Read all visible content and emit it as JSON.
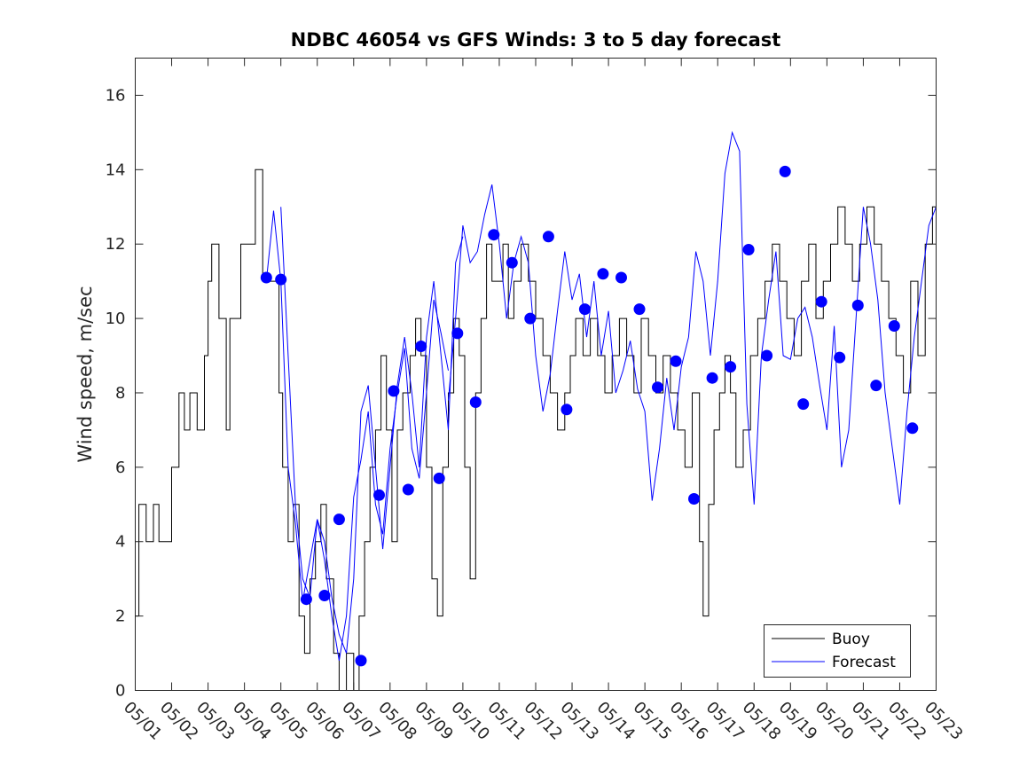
{
  "chart_data": {
    "type": "line",
    "title": "NDBC 46054 vs GFS Winds: 3 to 5 day forecast",
    "xlabel": "",
    "ylabel": "Wind speed, m/sec",
    "xlim": [
      0,
      22
    ],
    "ylim": [
      0,
      17
    ],
    "yticks": [
      0,
      2,
      4,
      6,
      8,
      10,
      12,
      14,
      16
    ],
    "xtick_labels": [
      "05/01",
      "05/02",
      "05/03",
      "05/04",
      "05/05",
      "05/06",
      "05/07",
      "05/08",
      "05/09",
      "05/10",
      "05/11",
      "05/12",
      "05/13",
      "05/14",
      "05/15",
      "05/16",
      "05/17",
      "05/18",
      "05/19",
      "05/20",
      "05/21",
      "05/22",
      "05/23"
    ],
    "legend": {
      "placement": "bottom-right",
      "entries": [
        "Buoy",
        "Forecast"
      ]
    },
    "colors": {
      "buoy": "#000000",
      "forecast": "#0000ff",
      "axes": "#262626"
    },
    "series": [
      {
        "name": "Buoy",
        "style": "step",
        "x": [
          0,
          0.1,
          0.3,
          0.5,
          0.65,
          0.8,
          1.0,
          1.2,
          1.35,
          1.5,
          1.7,
          1.9,
          2.0,
          2.1,
          2.3,
          2.5,
          2.6,
          2.9,
          3.1,
          3.3,
          3.5,
          3.8,
          3.95,
          4.05,
          4.2,
          4.35,
          4.5,
          4.65,
          4.8,
          4.95,
          5.1,
          5.25,
          5.45,
          5.6,
          5.8,
          6.0,
          6.15,
          6.3,
          6.45,
          6.6,
          6.75,
          6.9,
          7.05,
          7.2,
          7.35,
          7.55,
          7.7,
          7.85,
          8.0,
          8.15,
          8.3,
          8.45,
          8.6,
          8.75,
          8.9,
          9.05,
          9.2,
          9.35,
          9.5,
          9.65,
          9.8,
          9.95,
          10.1,
          10.25,
          10.4,
          10.6,
          10.8,
          11.0,
          11.2,
          11.4,
          11.6,
          11.8,
          11.95,
          12.1,
          12.3,
          12.5,
          12.7,
          12.9,
          13.1,
          13.3,
          13.5,
          13.7,
          13.9,
          14.1,
          14.3,
          14.5,
          14.7,
          14.9,
          15.1,
          15.3,
          15.5,
          15.6,
          15.75,
          15.9,
          16.05,
          16.2,
          16.35,
          16.5,
          16.7,
          16.9,
          17.1,
          17.3,
          17.5,
          17.7,
          17.9,
          18.1,
          18.3,
          18.5,
          18.7,
          18.9,
          19.1,
          19.3,
          19.5,
          19.7,
          19.9,
          20.1,
          20.3,
          20.5,
          20.7,
          20.9,
          21.1,
          21.3,
          21.5,
          21.7,
          21.9
        ],
        "values": [
          2,
          5,
          4,
          5,
          4,
          4,
          6,
          8,
          7,
          8,
          7,
          9,
          11,
          12,
          10,
          7,
          10,
          12,
          12,
          14,
          11,
          11,
          8,
          6,
          4,
          5,
          2,
          1,
          3,
          4,
          5,
          3,
          1,
          0,
          1,
          0,
          2,
          4,
          6,
          7,
          9,
          7,
          4,
          7,
          8,
          9,
          10,
          9,
          6,
          3,
          2,
          6,
          8,
          10,
          9,
          6,
          3,
          8,
          10,
          12,
          11,
          11,
          12,
          10,
          11,
          12,
          11,
          10,
          9,
          8,
          7,
          8,
          9,
          10,
          9,
          10,
          9,
          8,
          9,
          10,
          9,
          8,
          10,
          9,
          8,
          9,
          8,
          7,
          6,
          8,
          4,
          2,
          5,
          7,
          8,
          9,
          8,
          6,
          7,
          9,
          10,
          11,
          12,
          11,
          10,
          9,
          11,
          12,
          10,
          11,
          12,
          13,
          12,
          11,
          12,
          13,
          12,
          11,
          10,
          9,
          8,
          11,
          9,
          12,
          13
        ]
      },
      {
        "name": "Forecast",
        "style": "line",
        "runs": [
          {
            "x": [
              3.6,
              3.8,
              4.0,
              4.2,
              4.4,
              4.6,
              4.8,
              5.0,
              5.2,
              5.4,
              5.6,
              5.8,
              6.0,
              6.2,
              6.4,
              6.6,
              6.8,
              7.0,
              7.2,
              7.4,
              7.6,
              7.8,
              8.0,
              8.2,
              8.4,
              8.6
            ],
            "y": [
              11.0,
              12.9,
              11.0,
              6.0,
              4.5,
              2.4,
              3.5,
              4.6,
              3.5,
              2.0,
              0.8,
              2.0,
              5.2,
              6.2,
              7.5,
              5.0,
              4.2,
              6.5,
              8.0,
              9.2,
              6.5,
              5.7,
              8.0,
              10.5,
              9.6,
              8.6
            ]
          },
          {
            "x": [
              4.0,
              4.2,
              4.4,
              4.6,
              4.8,
              5.0,
              5.2,
              5.4,
              5.6,
              5.8,
              6.0,
              6.2,
              6.4,
              6.6,
              6.8,
              7.0,
              7.2,
              7.4,
              7.6,
              7.8,
              8.0,
              8.2,
              8.4,
              8.6,
              8.8,
              9.0
            ],
            "y": [
              13.0,
              9.0,
              5.0,
              3.0,
              2.5,
              4.6,
              4.0,
              2.5,
              1.5,
              1.0,
              3.0,
              7.5,
              8.2,
              6.0,
              3.8,
              6.0,
              8.2,
              9.5,
              8.0,
              6.0,
              9.5,
              11.0,
              9.0,
              7.0,
              11.5,
              12.2
            ]
          },
          {
            "x": [
              8.6,
              8.8,
              9.0,
              9.2,
              9.4,
              9.6,
              9.8,
              10.0,
              10.2,
              10.4,
              10.6,
              10.8,
              11.0,
              11.2,
              11.4,
              11.6,
              11.8,
              12.0,
              12.2,
              12.4,
              12.6,
              12.8,
              13.0,
              13.2,
              13.4,
              13.6
            ],
            "y": [
              7.8,
              10.0,
              12.5,
              11.5,
              11.8,
              12.8,
              13.6,
              12.0,
              10.0,
              11.5,
              12.2,
              11.5,
              9.0,
              7.5,
              8.5,
              10.2,
              11.8,
              10.5,
              11.2,
              9.5,
              11.0,
              9.0,
              10.2,
              8.0,
              8.6,
              9.4
            ]
          },
          {
            "x": [
              13.6,
              13.8,
              14.0,
              14.2,
              14.4,
              14.6,
              14.8,
              15.0,
              15.2,
              15.4,
              15.6,
              15.8,
              16.0,
              16.2,
              16.4,
              16.6,
              16.8,
              17.0,
              17.2,
              17.4,
              17.6,
              17.8,
              18.0,
              18.2,
              18.4,
              18.6,
              18.8,
              19.0,
              19.2,
              19.4,
              19.6,
              19.8,
              20.0,
              20.2,
              20.4,
              20.6,
              20.8,
              21.0,
              21.2,
              21.4,
              21.6,
              21.8,
              22.0
            ],
            "y": [
              9.4,
              8.1,
              7.5,
              5.1,
              6.5,
              8.4,
              7.0,
              8.7,
              9.5,
              11.8,
              11.0,
              9.0,
              11.0,
              13.9,
              15.0,
              14.5,
              7.7,
              5.0,
              9.0,
              10.5,
              11.8,
              9.0,
              8.9,
              10.0,
              10.3,
              9.5,
              8.2,
              7.0,
              9.8,
              6.0,
              7.0,
              10.0,
              13.0,
              12.0,
              10.5,
              8.0,
              6.5,
              5.0,
              7.5,
              9.5,
              11.0,
              12.5,
              13.0
            ]
          }
        ],
        "markers": {
          "x": [
            3.6,
            4.0,
            4.7,
            5.2,
            5.6,
            6.2,
            6.7,
            7.1,
            7.5,
            7.85,
            8.35,
            8.85,
            9.35,
            9.85,
            10.35,
            10.85,
            11.35,
            11.85,
            12.35,
            12.85,
            13.35,
            13.85,
            14.35,
            14.85,
            15.35,
            15.85,
            16.35,
            16.85,
            17.35,
            17.85,
            18.35,
            18.85,
            19.35,
            19.85,
            20.35,
            20.85,
            21.35
          ],
          "y": [
            11.1,
            11.05,
            2.45,
            2.55,
            4.6,
            0.8,
            5.25,
            8.05,
            5.4,
            9.25,
            5.7,
            9.6,
            7.75,
            12.25,
            11.5,
            10.0,
            12.2,
            7.55,
            10.25,
            11.2,
            11.1,
            10.25,
            8.15,
            8.85,
            5.15,
            8.4,
            8.7,
            11.85,
            9.0,
            13.95,
            7.7,
            10.45,
            8.95,
            10.35,
            8.2,
            9.8,
            7.05
          ]
        }
      }
    ]
  }
}
